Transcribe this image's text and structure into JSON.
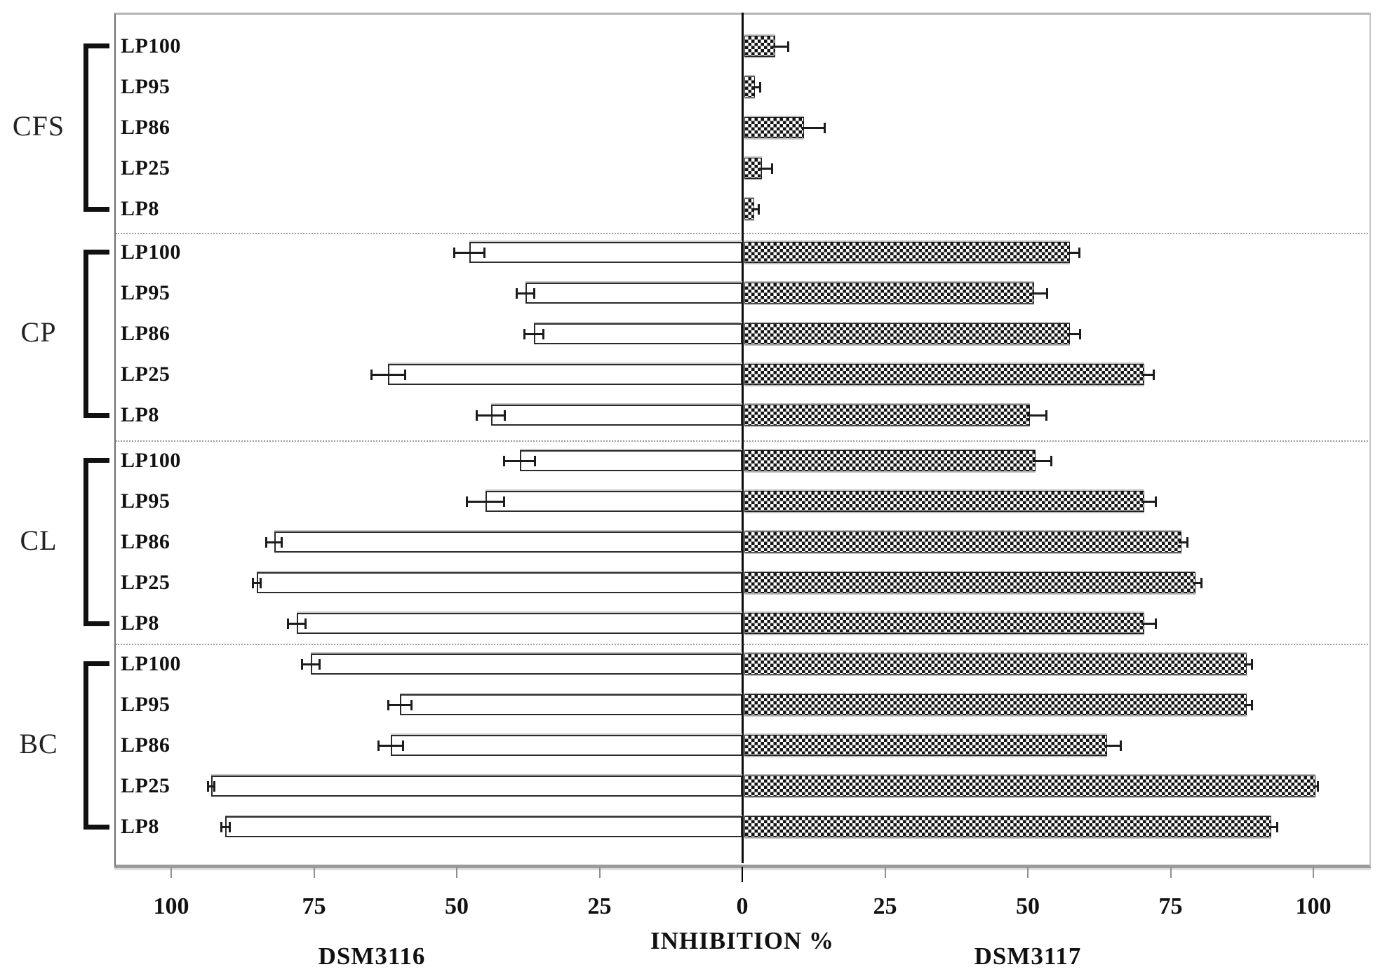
{
  "labels": {
    "x_axis_title": "INHIBITION %",
    "left_series": "DSM3116",
    "right_series": "DSM3117"
  },
  "colors": {
    "bar_left_fill": "#ffffff",
    "bar_border": "#2a2a2a",
    "checker_dark": "#141414",
    "axis_gray": "#9b9b9b",
    "separator_gray": "#9c9c9c",
    "error_bar": "#1c1c1c"
  },
  "chart_data": {
    "type": "bar",
    "variant": "horizontal-diverging-tornado",
    "title": "",
    "xlabel": "INHIBITION %",
    "ylabel": "",
    "xlim": [
      -110,
      110
    ],
    "grid": false,
    "x_tick_labels": [
      "100",
      "75",
      "50",
      "25",
      "0",
      "25",
      "50",
      "75",
      "100"
    ],
    "x_tick_values": [
      -100,
      -75,
      -50,
      -25,
      0,
      25,
      50,
      75,
      100
    ],
    "left_series_name": "DSM3116",
    "right_series_name": "DSM3117",
    "left_bar_style": "white-outline",
    "right_bar_style": "black-white-checker",
    "groups": [
      {
        "label": "CFS",
        "rows": [
          {
            "label": "LP100",
            "DSM3116": {
              "value": 0,
              "err": 0
            },
            "DSM3117": {
              "value": 5.4,
              "err": 2.2
            }
          },
          {
            "label": "LP95",
            "DSM3116": {
              "value": 0,
              "err": 0
            },
            "DSM3117": {
              "value": 1.8,
              "err": 0.9
            }
          },
          {
            "label": "LP86",
            "DSM3116": {
              "value": 0,
              "err": 0
            },
            "DSM3117": {
              "value": 10.5,
              "err": 3.5
            }
          },
          {
            "label": "LP25",
            "DSM3116": {
              "value": 0,
              "err": 0
            },
            "DSM3117": {
              "value": 3.1,
              "err": 1.7
            }
          },
          {
            "label": "LP8",
            "DSM3116": {
              "value": 0,
              "err": 0
            },
            "DSM3117": {
              "value": 1.7,
              "err": 0.8
            }
          }
        ]
      },
      {
        "label": "CP",
        "rows": [
          {
            "label": "LP100",
            "DSM3116": {
              "value": 47.8,
              "err": 2.7
            },
            "DSM3117": {
              "value": 57,
              "err": 1.6
            }
          },
          {
            "label": "LP95",
            "DSM3116": {
              "value": 38,
              "err": 1.6
            },
            "DSM3117": {
              "value": 50.7,
              "err": 2.2
            }
          },
          {
            "label": "LP86",
            "DSM3116": {
              "value": 36.5,
              "err": 1.7
            },
            "DSM3117": {
              "value": 57,
              "err": 1.7
            }
          },
          {
            "label": "LP25",
            "DSM3116": {
              "value": 62,
              "err": 3
            },
            "DSM3117": {
              "value": 70,
              "err": 1.6
            }
          },
          {
            "label": "LP8",
            "DSM3116": {
              "value": 44,
              "err": 2.5
            },
            "DSM3117": {
              "value": 50,
              "err": 2.8
            }
          }
        ]
      },
      {
        "label": "CL",
        "rows": [
          {
            "label": "LP100",
            "DSM3116": {
              "value": 39,
              "err": 2.8
            },
            "DSM3117": {
              "value": 51,
              "err": 2.7
            }
          },
          {
            "label": "LP95",
            "DSM3116": {
              "value": 45,
              "err": 3.3
            },
            "DSM3117": {
              "value": 70,
              "err": 2
            }
          },
          {
            "label": "LP86",
            "DSM3116": {
              "value": 82,
              "err": 1.4
            },
            "DSM3117": {
              "value": 76.5,
              "err": 1
            }
          },
          {
            "label": "LP25",
            "DSM3116": {
              "value": 85,
              "err": 0.7
            },
            "DSM3117": {
              "value": 79,
              "err": 1
            }
          },
          {
            "label": "LP8",
            "DSM3116": {
              "value": 78,
              "err": 1.6
            },
            "DSM3117": {
              "value": 70,
              "err": 2
            }
          }
        ]
      },
      {
        "label": "BC",
        "rows": [
          {
            "label": "LP100",
            "DSM3116": {
              "value": 75.5,
              "err": 1.6
            },
            "DSM3117": {
              "value": 88,
              "err": 0.8
            }
          },
          {
            "label": "LP95",
            "DSM3116": {
              "value": 60,
              "err": 2.1
            },
            "DSM3117": {
              "value": 88,
              "err": 0.8
            }
          },
          {
            "label": "LP86",
            "DSM3116": {
              "value": 61.5,
              "err": 2.2
            },
            "DSM3117": {
              "value": 63.5,
              "err": 2.3
            }
          },
          {
            "label": "LP25",
            "DSM3116": {
              "value": 93,
              "err": 0.6
            },
            "DSM3117": {
              "value": 100,
              "err": 0.4
            }
          },
          {
            "label": "LP8",
            "DSM3116": {
              "value": 90.5,
              "err": 0.8
            },
            "DSM3117": {
              "value": 92.3,
              "err": 0.9
            }
          }
        ]
      }
    ]
  }
}
